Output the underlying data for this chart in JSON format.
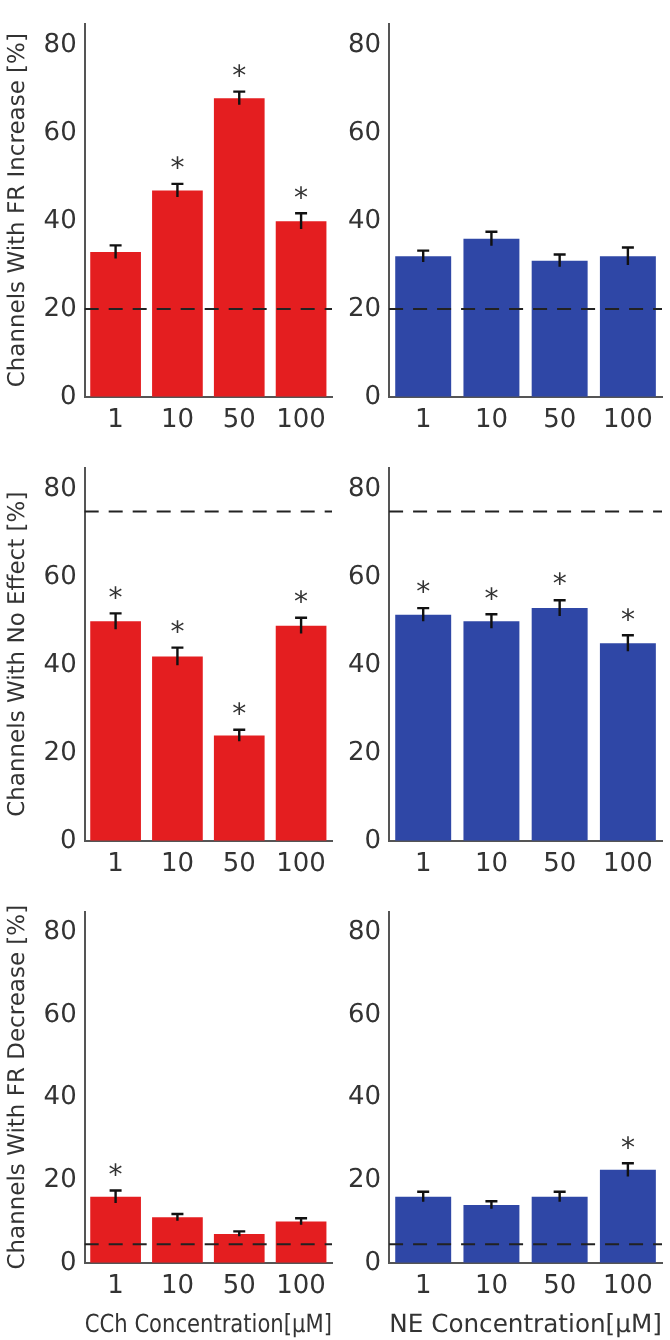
{
  "chart_data": [
    {
      "type": "bar",
      "ylabel": "Channels With FR Increase [%]",
      "categories": [
        "1",
        "10",
        "50",
        "100"
      ],
      "values": [
        33,
        47,
        68,
        40
      ],
      "errors": [
        1.5,
        1.5,
        1.5,
        1.8
      ],
      "color": "#e41e20",
      "ylim": [
        0,
        85
      ],
      "yticks": [
        0,
        20,
        40,
        60,
        80
      ],
      "ref_lines": [
        {
          "axis": "y",
          "value": 20,
          "line_style": "dashed"
        }
      ],
      "annotations": [
        {
          "text": "*",
          "x": "10",
          "y": 47
        },
        {
          "text": "*",
          "x": "50",
          "y": 68
        },
        {
          "text": "*",
          "x": "100",
          "y": 40
        }
      ]
    },
    {
      "type": "bar",
      "categories": [
        "1",
        "10",
        "50",
        "100"
      ],
      "values": [
        32,
        36,
        31,
        32
      ],
      "errors": [
        1.3,
        1.6,
        1.4,
        2
      ],
      "color": "#2f47a6",
      "ylim": [
        0,
        85
      ],
      "yticks": [
        0,
        20,
        40,
        60,
        80
      ],
      "ref_lines": [
        {
          "axis": "y",
          "value": 20,
          "line_style": "dashed"
        }
      ]
    },
    {
      "type": "bar",
      "ylabel": "Channels With No Effect [%]",
      "categories": [
        "1",
        "10",
        "50",
        "100"
      ],
      "values": [
        50,
        42,
        24,
        49
      ],
      "errors": [
        1.8,
        2,
        1.3,
        1.8
      ],
      "color": "#e41e20",
      "ylim": [
        0,
        85
      ],
      "yticks": [
        0,
        20,
        40,
        60,
        80
      ],
      "ref_lines": [
        {
          "axis": "y",
          "value": 75,
          "line_style": "dashed"
        }
      ],
      "annotations": [
        {
          "text": "*",
          "x": "1",
          "y": 50
        },
        {
          "text": "*",
          "x": "10",
          "y": 42
        },
        {
          "text": "*",
          "x": "50",
          "y": 24
        },
        {
          "text": "*",
          "x": "100",
          "y": 49
        }
      ]
    },
    {
      "type": "bar",
      "categories": [
        "1",
        "10",
        "50",
        "100"
      ],
      "values": [
        51.5,
        50,
        53,
        45
      ],
      "errors": [
        1.5,
        1.6,
        1.8,
        1.8
      ],
      "color": "#2f47a6",
      "ylim": [
        0,
        85
      ],
      "yticks": [
        0,
        20,
        40,
        60,
        80
      ],
      "ref_lines": [
        {
          "axis": "y",
          "value": 75,
          "line_style": "dashed"
        }
      ],
      "annotations": [
        {
          "text": "*",
          "x": "1",
          "y": 51.5
        },
        {
          "text": "*",
          "x": "10",
          "y": 50
        },
        {
          "text": "*",
          "x": "50",
          "y": 53
        },
        {
          "text": "*",
          "x": "100",
          "y": 45
        }
      ]
    },
    {
      "type": "bar",
      "ylabel": "Channels With FR Decrease [%]",
      "xlabel": "CCh Concentration[μM]",
      "categories": [
        "1",
        "10",
        "50",
        "100"
      ],
      "values": [
        16,
        11,
        7,
        10
      ],
      "errors": [
        1.5,
        0.8,
        0.6,
        0.8
      ],
      "color": "#e41e20",
      "ylim": [
        0,
        85
      ],
      "yticks": [
        0,
        20,
        40,
        60,
        80
      ],
      "ref_lines": [
        {
          "axis": "y",
          "value": 4.5,
          "line_style": "dashed"
        }
      ],
      "annotations": [
        {
          "text": "*",
          "x": "1",
          "y": 16
        }
      ]
    },
    {
      "type": "bar",
      "xlabel": "NE Concentration[μM]",
      "categories": [
        "1",
        "10",
        "50",
        "100"
      ],
      "values": [
        16,
        14,
        16,
        22.5
      ],
      "errors": [
        1.2,
        0.9,
        1.2,
        1.6
      ],
      "color": "#2f47a6",
      "ylim": [
        0,
        85
      ],
      "yticks": [
        0,
        20,
        40,
        60,
        80
      ],
      "ref_lines": [
        {
          "axis": "y",
          "value": 4.5,
          "line_style": "dashed"
        }
      ],
      "annotations": [
        {
          "text": "*",
          "x": "100",
          "y": 22.5
        }
      ]
    }
  ]
}
